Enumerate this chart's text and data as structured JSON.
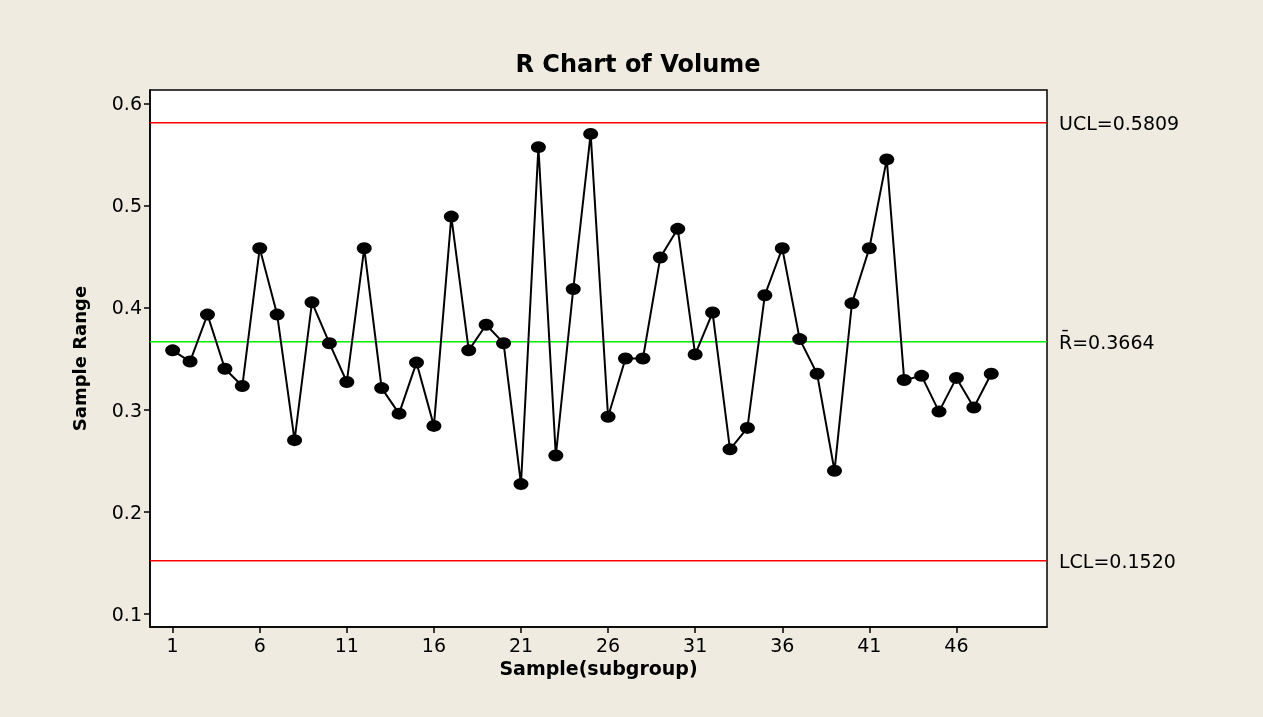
{
  "chart_data": {
    "type": "line",
    "title": "R Chart of Volume",
    "xlabel": "Sample(subgroup)",
    "ylabel": "Sample Range",
    "x": [
      1,
      2,
      3,
      4,
      5,
      6,
      7,
      8,
      9,
      10,
      11,
      12,
      13,
      14,
      15,
      16,
      17,
      18,
      19,
      20,
      21,
      22,
      23,
      24,
      25,
      26,
      27,
      28,
      29,
      30,
      31,
      32,
      33,
      34,
      35,
      36,
      37,
      38,
      39,
      40,
      41,
      42,
      43,
      44,
      45,
      46,
      47,
      48
    ],
    "series": [
      {
        "color": "#000000",
        "values": [
          0.358,
          0.347,
          0.393,
          0.34,
          0.323,
          0.458,
          0.393,
          0.27,
          0.405,
          0.365,
          0.327,
          0.458,
          0.321,
          0.296,
          0.346,
          0.284,
          0.489,
          0.358,
          0.383,
          0.365,
          0.227,
          0.557,
          0.255,
          0.418,
          0.57,
          0.293,
          0.35,
          0.35,
          0.449,
          0.477,
          0.354,
          0.395,
          0.261,
          0.282,
          0.412,
          0.458,
          0.369,
          0.335,
          0.24,
          0.404,
          0.458,
          0.545,
          0.329,
          0.333,
          0.298,
          0.331,
          0.302,
          0.335
        ]
      }
    ],
    "xlim": [
      -0.3,
      51.2
    ],
    "xticks": [
      1,
      6,
      11,
      16,
      21,
      26,
      31,
      36,
      41,
      46
    ],
    "ylim": [
      0.087,
      0.613
    ],
    "yticks": [
      {
        "value": 0.1,
        "label": "0.1"
      },
      {
        "value": 0.2,
        "label": "0.2"
      },
      {
        "value": 0.3,
        "label": "0.3"
      },
      {
        "value": 0.4,
        "label": "0.4"
      },
      {
        "value": 0.5,
        "label": "0.5"
      },
      {
        "value": 0.6,
        "label": "0.6"
      }
    ],
    "ref_lines": [
      {
        "axis": "y",
        "value": 0.5809,
        "label": "UCL=0.5809",
        "color": "#ff0000"
      },
      {
        "axis": "y",
        "value": 0.3664,
        "label": "R̄=0.3664",
        "color": "#00ee00"
      },
      {
        "axis": "y",
        "value": 0.152,
        "label": "LCL=0.1520",
        "color": "#ff0000"
      }
    ],
    "grid": false,
    "marker": "circle",
    "line_style": "solid"
  }
}
